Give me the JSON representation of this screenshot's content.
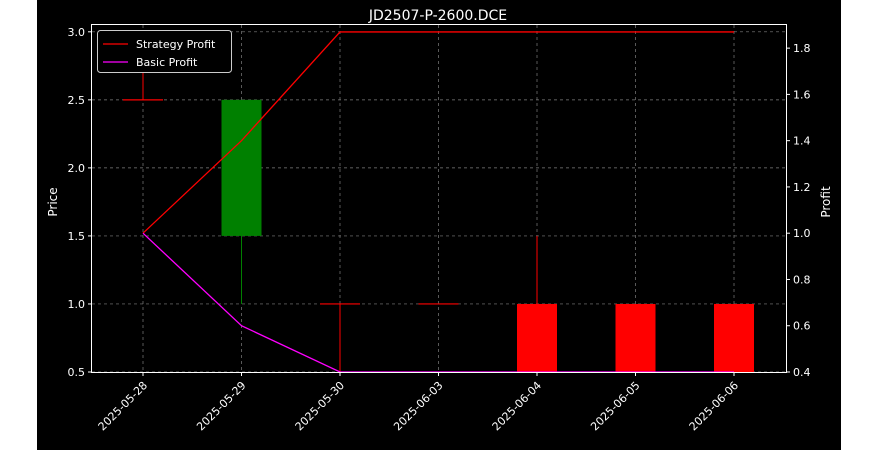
{
  "chart_data": {
    "type": "candlestick",
    "title": "JD2507-P-2600.DCE",
    "ylabel_left": "Price",
    "ylabel_right": "Profit",
    "categories": [
      "2025-05-28",
      "2025-05-29",
      "2025-05-30",
      "2025-06-03",
      "2025-06-04",
      "2025-06-05",
      "2025-06-06"
    ],
    "price_ylim": [
      0.5,
      3.05
    ],
    "price_ticks": [
      "0.5",
      "1.0",
      "1.5",
      "2.0",
      "2.5",
      "3.0"
    ],
    "profit_ylim": [
      0.4,
      1.9
    ],
    "profit_ticks": [
      "0.4",
      "0.6",
      "0.8",
      "1.0",
      "1.2",
      "1.4",
      "1.6",
      "1.8"
    ],
    "candles": [
      {
        "date": "2025-05-28",
        "open": 2.5,
        "high": 3.0,
        "low": 2.5,
        "close": 2.5
      },
      {
        "date": "2025-05-29",
        "open": 1.5,
        "high": 2.5,
        "low": 1.0,
        "close": 2.5
      },
      {
        "date": "2025-05-30",
        "open": 1.0,
        "high": 1.0,
        "low": 0.5,
        "close": 1.0
      },
      {
        "date": "2025-06-03",
        "open": 1.0,
        "high": 1.0,
        "low": 1.0,
        "close": 1.0
      },
      {
        "date": "2025-06-04",
        "open": 1.0,
        "high": 1.5,
        "low": 0.5,
        "close": 0.5
      },
      {
        "date": "2025-06-05",
        "open": 1.0,
        "high": 1.0,
        "low": 0.5,
        "close": 0.5
      },
      {
        "date": "2025-06-06",
        "open": 1.0,
        "high": 1.0,
        "low": 0.5,
        "close": 0.5
      }
    ],
    "series": [
      {
        "name": "Strategy Profit",
        "color": "#ff0000",
        "values": [
          1.0,
          1.4,
          1.87,
          1.87,
          1.87,
          1.87,
          1.87
        ]
      },
      {
        "name": "Basic Profit",
        "color": "#ff00ff",
        "values": [
          1.0,
          0.6,
          0.4,
          0.4,
          0.4,
          0.4,
          0.4
        ]
      }
    ],
    "up_color": "#008000",
    "down_color": "#ff0000",
    "legend_position": "top-left",
    "grid": true
  }
}
